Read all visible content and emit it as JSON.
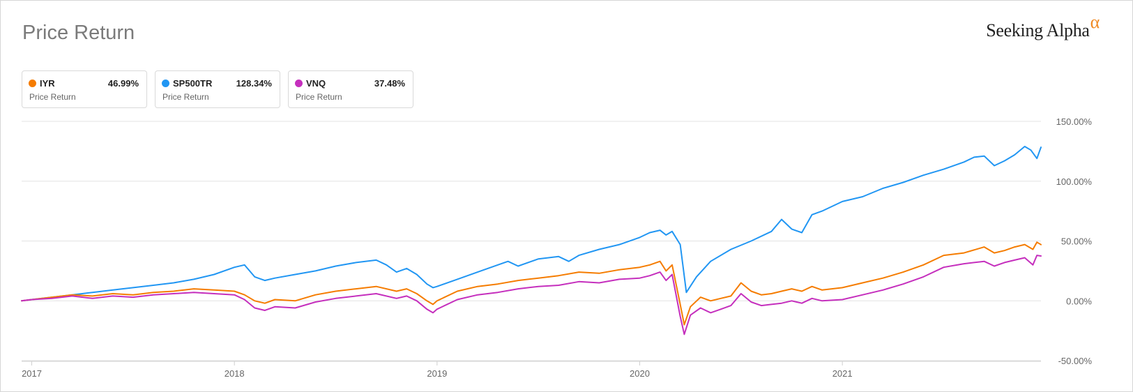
{
  "header": {
    "title": "Price Return",
    "brand": "Seeking Alpha",
    "brand_symbol": "α"
  },
  "legend": [
    {
      "symbol": "IYR",
      "value": "46.99%",
      "subtitle": "Price Return",
      "color": "#f57c00"
    },
    {
      "symbol": "SP500TR",
      "value": "128.34%",
      "subtitle": "Price Return",
      "color": "#2196f3"
    },
    {
      "symbol": "VNQ",
      "value": "37.48%",
      "subtitle": "Price Return",
      "color": "#c52fbd"
    }
  ],
  "chart_data": {
    "type": "line",
    "title": "Price Return",
    "xlabel": "",
    "ylabel": "",
    "x_unit": "year",
    "xlim": [
      2016.95,
      2021.98
    ],
    "ylim": [
      -50,
      150
    ],
    "y_ticks": [
      -50,
      0,
      50,
      100,
      150
    ],
    "y_tick_labels": [
      "-50.00%",
      "0.00%",
      "50.00%",
      "100.00%",
      "150.00%"
    ],
    "x_ticks": [
      2017,
      2018,
      2019,
      2020,
      2021
    ],
    "x_tick_labels": [
      "2017",
      "2018",
      "2019",
      "2020",
      "2021"
    ],
    "grid": true,
    "legend_position": "top-left",
    "series": [
      {
        "name": "SP500TR",
        "color": "#2196f3",
        "x": [
          2016.95,
          2017.0,
          2017.1,
          2017.2,
          2017.3,
          2017.4,
          2017.5,
          2017.6,
          2017.7,
          2017.8,
          2017.9,
          2018.0,
          2018.05,
          2018.1,
          2018.15,
          2018.2,
          2018.3,
          2018.4,
          2018.5,
          2018.6,
          2018.7,
          2018.75,
          2018.8,
          2018.85,
          2018.9,
          2018.95,
          2018.98,
          2019.0,
          2019.1,
          2019.2,
          2019.3,
          2019.35,
          2019.4,
          2019.5,
          2019.6,
          2019.65,
          2019.7,
          2019.8,
          2019.9,
          2020.0,
          2020.05,
          2020.1,
          2020.13,
          2020.16,
          2020.2,
          2020.23,
          2020.28,
          2020.35,
          2020.45,
          2020.55,
          2020.65,
          2020.7,
          2020.75,
          2020.8,
          2020.85,
          2020.9,
          2021.0,
          2021.1,
          2021.2,
          2021.3,
          2021.4,
          2021.5,
          2021.6,
          2021.65,
          2021.7,
          2021.75,
          2021.8,
          2021.85,
          2021.9,
          2021.93,
          2021.96,
          2021.98
        ],
        "values": [
          0,
          1,
          3,
          5,
          7,
          9,
          11,
          13,
          15,
          18,
          22,
          28,
          30,
          20,
          17,
          19,
          22,
          25,
          29,
          32,
          34,
          30,
          24,
          27,
          22,
          14,
          11,
          12,
          18,
          24,
          30,
          33,
          29,
          35,
          37,
          33,
          38,
          43,
          47,
          53,
          57,
          59,
          55,
          58,
          47,
          7,
          20,
          33,
          43,
          50,
          58,
          68,
          60,
          57,
          72,
          75,
          83,
          87,
          94,
          99,
          105,
          110,
          116,
          120,
          121,
          113,
          117,
          122,
          129,
          126,
          119,
          128.34
        ]
      },
      {
        "name": "IYR",
        "color": "#f57c00",
        "x": [
          2016.95,
          2017.0,
          2017.1,
          2017.2,
          2017.3,
          2017.4,
          2017.5,
          2017.6,
          2017.7,
          2017.8,
          2017.9,
          2018.0,
          2018.05,
          2018.1,
          2018.15,
          2018.2,
          2018.3,
          2018.4,
          2018.5,
          2018.6,
          2018.7,
          2018.8,
          2018.85,
          2018.9,
          2018.95,
          2018.98,
          2019.0,
          2019.1,
          2019.2,
          2019.3,
          2019.4,
          2019.5,
          2019.6,
          2019.7,
          2019.8,
          2019.9,
          2020.0,
          2020.05,
          2020.1,
          2020.13,
          2020.16,
          2020.2,
          2020.22,
          2020.25,
          2020.3,
          2020.35,
          2020.4,
          2020.45,
          2020.5,
          2020.55,
          2020.6,
          2020.65,
          2020.7,
          2020.75,
          2020.8,
          2020.85,
          2020.9,
          2021.0,
          2021.1,
          2021.2,
          2021.3,
          2021.4,
          2021.5,
          2021.6,
          2021.7,
          2021.75,
          2021.8,
          2021.85,
          2021.9,
          2021.94,
          2021.96,
          2021.98
        ],
        "values": [
          0,
          1,
          3,
          5,
          4,
          6,
          5,
          7,
          8,
          10,
          9,
          8,
          5,
          0,
          -2,
          1,
          0,
          5,
          8,
          10,
          12,
          8,
          10,
          6,
          0,
          -3,
          0,
          8,
          12,
          14,
          17,
          19,
          21,
          24,
          23,
          26,
          28,
          30,
          33,
          25,
          30,
          -3,
          -20,
          -5,
          3,
          0,
          2,
          4,
          15,
          8,
          5,
          6,
          8,
          10,
          8,
          12,
          9,
          11,
          15,
          19,
          24,
          30,
          38,
          40,
          45,
          40,
          42,
          45,
          47,
          43,
          49,
          46.99
        ]
      },
      {
        "name": "VNQ",
        "color": "#c52fbd",
        "x": [
          2016.95,
          2017.0,
          2017.1,
          2017.2,
          2017.3,
          2017.4,
          2017.5,
          2017.6,
          2017.7,
          2017.8,
          2017.9,
          2018.0,
          2018.05,
          2018.1,
          2018.15,
          2018.2,
          2018.3,
          2018.4,
          2018.5,
          2018.6,
          2018.7,
          2018.8,
          2018.85,
          2018.9,
          2018.95,
          2018.98,
          2019.0,
          2019.1,
          2019.2,
          2019.3,
          2019.4,
          2019.5,
          2019.6,
          2019.7,
          2019.8,
          2019.9,
          2020.0,
          2020.05,
          2020.1,
          2020.13,
          2020.16,
          2020.2,
          2020.22,
          2020.25,
          2020.3,
          2020.35,
          2020.4,
          2020.45,
          2020.5,
          2020.55,
          2020.6,
          2020.65,
          2020.7,
          2020.75,
          2020.8,
          2020.85,
          2020.9,
          2021.0,
          2021.1,
          2021.2,
          2021.3,
          2021.4,
          2021.5,
          2021.6,
          2021.7,
          2021.75,
          2021.8,
          2021.85,
          2021.9,
          2021.94,
          2021.96,
          2021.98
        ],
        "values": [
          0,
          1,
          2,
          4,
          2,
          4,
          3,
          5,
          6,
          7,
          6,
          5,
          1,
          -6,
          -8,
          -5,
          -6,
          -1,
          2,
          4,
          6,
          2,
          4,
          0,
          -7,
          -10,
          -7,
          1,
          5,
          7,
          10,
          12,
          13,
          16,
          15,
          18,
          19,
          21,
          24,
          17,
          22,
          -13,
          -28,
          -12,
          -6,
          -10,
          -7,
          -4,
          6,
          -1,
          -4,
          -3,
          -2,
          0,
          -2,
          2,
          0,
          1,
          5,
          9,
          14,
          20,
          28,
          31,
          33,
          29,
          32,
          34,
          36,
          30,
          38,
          37.48
        ]
      }
    ]
  }
}
